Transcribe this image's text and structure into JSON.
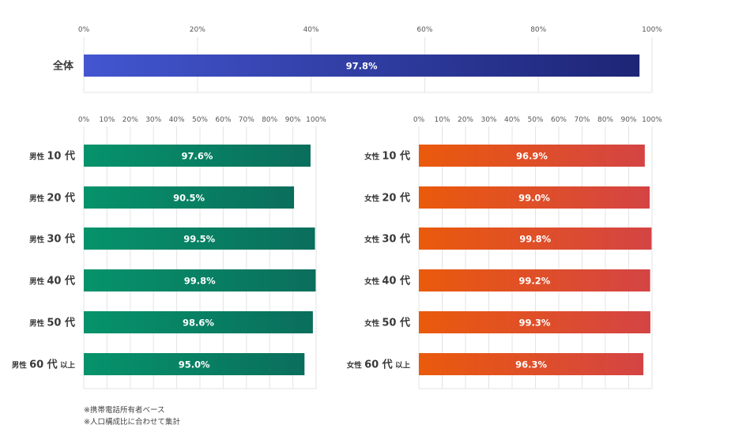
{
  "chart_data": [
    {
      "type": "bar",
      "orientation": "horizontal",
      "categories": [
        "全体"
      ],
      "values": [
        97.8
      ],
      "value_labels": [
        "97.8%"
      ],
      "xlim": [
        0,
        100
      ],
      "x_ticks": [
        "0%",
        "20%",
        "40%",
        "60%",
        "80%",
        "100%"
      ],
      "grid": true,
      "colors": {
        "bar_start": "#4356d0",
        "bar_end": "#1d2575"
      }
    },
    {
      "type": "bar",
      "orientation": "horizontal",
      "categories": [
        {
          "prefix": "男性",
          "number": "10",
          "unit": "代",
          "suffix": ""
        },
        {
          "prefix": "男性",
          "number": "20",
          "unit": "代",
          "suffix": ""
        },
        {
          "prefix": "男性",
          "number": "30",
          "unit": "代",
          "suffix": ""
        },
        {
          "prefix": "男性",
          "number": "40",
          "unit": "代",
          "suffix": ""
        },
        {
          "prefix": "男性",
          "number": "50",
          "unit": "代",
          "suffix": ""
        },
        {
          "prefix": "男性",
          "number": "60",
          "unit": "代",
          "suffix": "以上"
        }
      ],
      "values": [
        97.6,
        90.5,
        99.5,
        99.8,
        98.6,
        95.0
      ],
      "value_labels": [
        "97.6%",
        "90.5%",
        "99.5%",
        "99.8%",
        "98.6%",
        "95.0%"
      ],
      "xlim": [
        0,
        100
      ],
      "x_ticks": [
        "0%",
        "10%",
        "20%",
        "30%",
        "40%",
        "50%",
        "60%",
        "70%",
        "80%",
        "90%",
        "100%"
      ],
      "grid": true,
      "colors": {
        "bar_start": "#06936b",
        "bar_end": "#0a6e5c"
      }
    },
    {
      "type": "bar",
      "orientation": "horizontal",
      "categories": [
        {
          "prefix": "女性",
          "number": "10",
          "unit": "代",
          "suffix": ""
        },
        {
          "prefix": "女性",
          "number": "20",
          "unit": "代",
          "suffix": ""
        },
        {
          "prefix": "女性",
          "number": "30",
          "unit": "代",
          "suffix": ""
        },
        {
          "prefix": "女性",
          "number": "40",
          "unit": "代",
          "suffix": ""
        },
        {
          "prefix": "女性",
          "number": "50",
          "unit": "代",
          "suffix": ""
        },
        {
          "prefix": "女性",
          "number": "60",
          "unit": "代",
          "suffix": "以上"
        }
      ],
      "values": [
        96.9,
        99.0,
        99.8,
        99.2,
        99.3,
        96.3
      ],
      "value_labels": [
        "96.9%",
        "99.0%",
        "99.8%",
        "99.2%",
        "99.3%",
        "96.3%"
      ],
      "xlim": [
        0,
        100
      ],
      "x_ticks": [
        "0%",
        "10%",
        "20%",
        "30%",
        "40%",
        "50%",
        "60%",
        "70%",
        "80%",
        "90%",
        "100%"
      ],
      "grid": true,
      "colors": {
        "bar_start": "#ea5a0c",
        "bar_end": "#d44444"
      }
    }
  ],
  "notes": [
    "※携帯電話所有者ベース",
    "※人口構成比に合わせて集計"
  ]
}
